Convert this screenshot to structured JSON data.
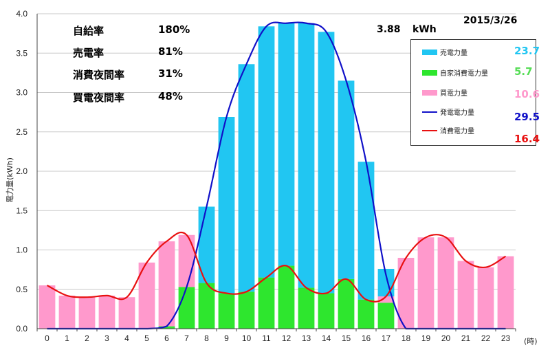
{
  "date": "2015/3/26",
  "total": {
    "value": "3.88",
    "unit": "kWh"
  },
  "stats": [
    {
      "label": "自給率",
      "value": "180%"
    },
    {
      "label": "売電率",
      "value": "81%"
    },
    {
      "label": "消費夜間率",
      "value": "31%"
    },
    {
      "label": "買電夜間率",
      "value": "48%"
    }
  ],
  "legend": [
    {
      "name": "売電力量",
      "value": "23.7",
      "color": "#21c6f2",
      "kind": "bar"
    },
    {
      "name": "自家消費電力量",
      "value": "5.7",
      "color": "#2ee62e",
      "kind": "bar"
    },
    {
      "name": "買電力量",
      "value": "10.6",
      "color": "#ff99cc",
      "kind": "bar"
    },
    {
      "name": "発電電力量",
      "value": "29.5",
      "color": "#1010c8",
      "kind": "line"
    },
    {
      "name": "消費電力量",
      "value": "16.4",
      "color": "#e81010",
      "kind": "line"
    }
  ],
  "chart_data": {
    "type": "bar",
    "ylabel": "電力量(kWh)",
    "xunit": "(時)",
    "ylim": [
      0,
      4.0
    ],
    "yticks": [
      "0.0",
      "0.5",
      "1.0",
      "1.5",
      "2.0",
      "2.5",
      "3.0",
      "3.5",
      "4.0"
    ],
    "categories": [
      "0",
      "1",
      "2",
      "3",
      "4",
      "5",
      "6",
      "7",
      "8",
      "9",
      "10",
      "11",
      "12",
      "13",
      "14",
      "15",
      "16",
      "17",
      "18",
      "19",
      "20",
      "21",
      "22",
      "23"
    ],
    "series": [
      {
        "name": "自家消費電力量",
        "color": "#2ee62e",
        "values": [
          0,
          0,
          0,
          0,
          0,
          0,
          0.03,
          0.53,
          0.58,
          0.45,
          0.47,
          0.65,
          0.8,
          0.52,
          0.45,
          0.63,
          0.37,
          0.33,
          0,
          0,
          0,
          0,
          0,
          0
        ]
      },
      {
        "name": "買電力量",
        "color": "#ff99cc",
        "values": [
          0.55,
          0.42,
          0.4,
          0.42,
          0.4,
          0.84,
          1.08,
          0.66,
          0,
          0,
          0,
          0,
          0,
          0,
          0,
          0,
          0,
          0.08,
          0.9,
          1.16,
          1.16,
          0.86,
          0.78,
          0.92
        ]
      },
      {
        "name": "売電力量",
        "color": "#21c6f2",
        "values": [
          0,
          0,
          0,
          0,
          0,
          0,
          0,
          0,
          0.97,
          2.24,
          2.89,
          3.19,
          3.08,
          3.36,
          3.32,
          2.52,
          1.75,
          0.35,
          0,
          0,
          0,
          0,
          0,
          0
        ]
      },
      {
        "name": "発電電力量",
        "color": "#1010c8",
        "type": "line",
        "values": [
          0,
          0,
          0,
          0,
          0,
          0,
          0.03,
          0.53,
          1.55,
          2.69,
          3.36,
          3.84,
          3.88,
          3.88,
          3.77,
          3.15,
          2.12,
          0.68,
          0,
          0,
          0,
          0,
          0,
          0
        ]
      },
      {
        "name": "消費電力量",
        "color": "#e81010",
        "type": "line",
        "values": [
          0.55,
          0.42,
          0.4,
          0.42,
          0.4,
          0.84,
          1.11,
          1.19,
          0.58,
          0.45,
          0.47,
          0.65,
          0.8,
          0.52,
          0.45,
          0.63,
          0.37,
          0.41,
          0.9,
          1.16,
          1.16,
          0.86,
          0.78,
          0.92
        ]
      }
    ]
  }
}
